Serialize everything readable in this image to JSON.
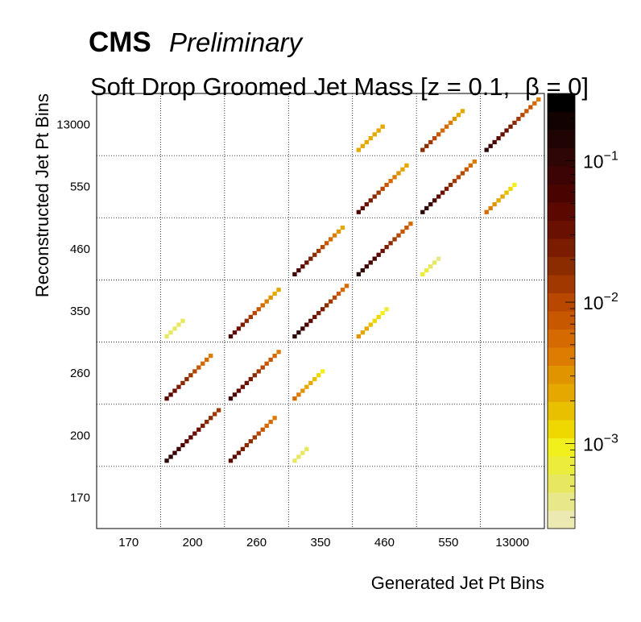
{
  "header": {
    "cms": "CMS",
    "preliminary": "Preliminary",
    "title_main": "Soft Drop Groomed Jet Mass [z = 0.1,",
    "title_beta": "β = 0]"
  },
  "chart_data": {
    "type": "heatmap",
    "title": "Soft Drop Groomed Jet Mass [z = 0.1,   β = 0]",
    "xlabel": "Generated Jet Pt Bins",
    "ylabel": "Reconstructed Jet Pt Bins",
    "x_tick_labels": [
      "170",
      "200",
      "260",
      "350",
      "460",
      "550",
      "13000"
    ],
    "y_tick_labels": [
      "170",
      "200",
      "260",
      "350",
      "460",
      "550",
      "13000"
    ],
    "z_scale": "log",
    "z_range": [
      0.00025,
      0.3
    ],
    "colorbar_tick_labels": [
      "10",
      "10",
      "10"
    ],
    "colorbar_tick_exponents": [
      "−3",
      "−2",
      "−1"
    ],
    "colorbar_tick_values": [
      0.001,
      0.01,
      0.1
    ],
    "palette": [
      "#ece9b2",
      "#e8e88a",
      "#e8e860",
      "#ecec3c",
      "#f2f01c",
      "#eed800",
      "#e8c000",
      "#e4a800",
      "#e09400",
      "#dc7c00",
      "#d46a00",
      "#c85800",
      "#b84800",
      "#a03800",
      "#8a2c00",
      "#7a1c00",
      "#6a1000",
      "#5a0800",
      "#4a0400",
      "#3c0404",
      "#2e0606",
      "#200404",
      "#120202",
      "#000000"
    ],
    "blocks_note": "Each diagonal band is a 7x7 grid block (generated bin i, reconstructed bin j); values listed are peak values of the band.",
    "blocks": [
      {
        "gen": "200",
        "reco": "200",
        "peak": 0.12,
        "tail": 0.012
      },
      {
        "gen": "200",
        "reco": "260",
        "peak": 0.05,
        "tail": 0.004
      },
      {
        "gen": "200",
        "reco": "350",
        "peak": 0.0006,
        "tail": 0.0006
      },
      {
        "gen": "260",
        "reco": "200",
        "peak": 0.05,
        "tail": 0.004
      },
      {
        "gen": "260",
        "reco": "260",
        "peak": 0.08,
        "tail": 0.004
      },
      {
        "gen": "260",
        "reco": "350",
        "peak": 0.06,
        "tail": 0.002
      },
      {
        "gen": "350",
        "reco": "200",
        "peak": 0.0005,
        "tail": 0.0005
      },
      {
        "gen": "350",
        "reco": "260",
        "peak": 0.005,
        "tail": 0.001
      },
      {
        "gen": "350",
        "reco": "350",
        "peak": 0.12,
        "tail": 0.005
      },
      {
        "gen": "350",
        "reco": "460",
        "peak": 0.08,
        "tail": 0.002
      },
      {
        "gen": "460",
        "reco": "350",
        "peak": 0.003,
        "tail": 0.0008
      },
      {
        "gen": "460",
        "reco": "460",
        "peak": 0.15,
        "tail": 0.005
      },
      {
        "gen": "460",
        "reco": "550",
        "peak": 0.06,
        "tail": 0.002
      },
      {
        "gen": "460",
        "reco": "13000",
        "peak": 0.002,
        "tail": 0.002
      },
      {
        "gen": "550",
        "reco": "460",
        "peak": 0.0008,
        "tail": 0.0004
      },
      {
        "gen": "550",
        "reco": "550",
        "peak": 0.12,
        "tail": 0.004
      },
      {
        "gen": "550",
        "reco": "13000",
        "peak": 0.02,
        "tail": 0.002
      },
      {
        "gen": "13000",
        "reco": "550",
        "peak": 0.005,
        "tail": 0.001
      },
      {
        "gen": "13000",
        "reco": "13000",
        "peak": 0.1,
        "tail": 0.004
      }
    ]
  }
}
